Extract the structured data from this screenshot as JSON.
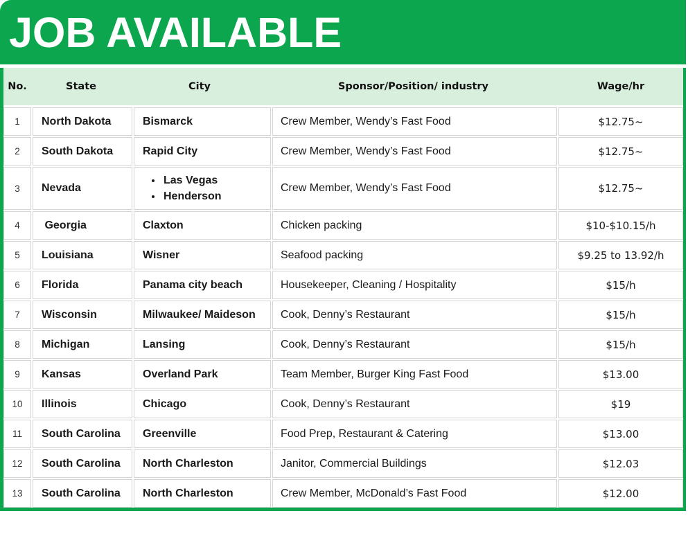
{
  "title": "JOB AVAILABLE",
  "colors": {
    "banner_green": "#0CA64E",
    "header_mint": "#D8EFDE",
    "cell_border_gray": "#D4D4D4",
    "title_text": "#FFFFFF",
    "body_text": "#1A1A1A"
  },
  "table": {
    "headers": [
      "No.",
      "State",
      "City",
      "Sponsor/Position/ industry",
      "Wage/hr"
    ],
    "rows": [
      {
        "no": "1",
        "state": "North Dakota",
        "city": "Bismarck",
        "sponsor": "Crew Member, Wendy’s Fast Food",
        "wage": "$12.75~"
      },
      {
        "no": "2",
        "state": "South Dakota",
        "city": "Rapid City",
        "sponsor": "Crew Member, Wendy’s Fast Food",
        "wage": "$12.75~"
      },
      {
        "no": "3",
        "state": "Nevada",
        "city_list": [
          "Las Vegas",
          "Henderson"
        ],
        "sponsor": "Crew Member, Wendy’s Fast Food",
        "wage": "$12.75~"
      },
      {
        "no": "4",
        "state": " Georgia",
        "city": "Claxton",
        "sponsor": "Chicken packing",
        "wage": "$10-$10.15/h"
      },
      {
        "no": "5",
        "state": "Louisiana",
        "city": "Wisner",
        "sponsor": "Seafood packing",
        "wage": "$9.25 to 13.92/h"
      },
      {
        "no": "6",
        "state": "Florida",
        "city": "Panama city beach",
        "sponsor": "Housekeeper, Cleaning / Hospitality",
        "wage": "$15/h"
      },
      {
        "no": "7",
        "state": "Wisconsin",
        "city": "Milwaukee/ Maideson",
        "sponsor": "Cook, Denny’s Restaurant",
        "wage": "$15/h"
      },
      {
        "no": "8",
        "state": "Michigan",
        "city": "Lansing",
        "sponsor": "Cook, Denny’s Restaurant",
        "wage": "$15/h"
      },
      {
        "no": "9",
        "state": "Kansas",
        "city": "Overland Park",
        "sponsor": "Team Member, Burger King Fast Food",
        "wage": "$13.00"
      },
      {
        "no": "10",
        "state": "Illinois",
        "city": "Chicago",
        "sponsor": "Cook, Denny’s Restaurant",
        "wage": "$19"
      },
      {
        "no": "11",
        "state": "South Carolina",
        "city": "Greenville",
        "sponsor": "Food Prep, Restaurant & Catering",
        "wage": "$13.00"
      },
      {
        "no": "12",
        "state": "South Carolina",
        "city": "North Charleston",
        "sponsor": "Janitor, Commercial Buildings",
        "wage": "$12.03"
      },
      {
        "no": "13",
        "state": "South Carolina",
        "city": "North Charleston",
        "sponsor": "Crew Member, McDonald’s Fast Food",
        "wage": "$12.00"
      }
    ]
  }
}
